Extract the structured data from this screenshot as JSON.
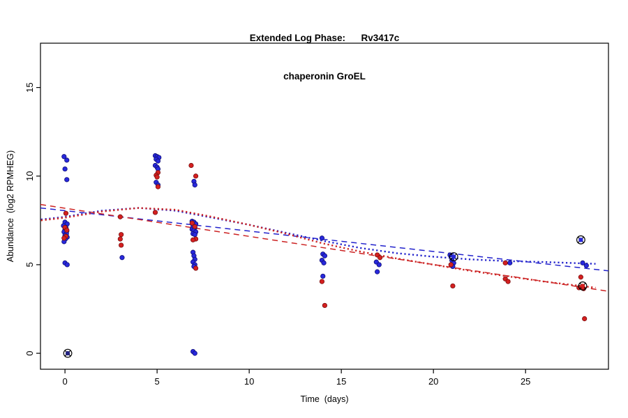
{
  "chart_data": {
    "type": "scatter",
    "title_line1": "Extended Log Phase:      Rv3417c",
    "title_line2": "chaperonin GroEL",
    "xlabel": "Time  (days)",
    "ylabel": "Abundance  (log2 RPMHEG)",
    "xticks": [
      0,
      5,
      10,
      15,
      20,
      25
    ],
    "yticks": [
      0,
      5,
      10,
      15
    ],
    "xlim": [
      -1.33,
      29.5
    ],
    "ylim": [
      -0.9,
      17.5
    ],
    "grid": false,
    "legend": "none",
    "colors": {
      "blue": "#2828DC",
      "red": "#D42020",
      "outlier_ring": "#000000"
    },
    "series": [
      {
        "name": "blue-points",
        "color": "#2828DC",
        "stroke": "#101078",
        "points": [
          [
            -0.05,
            11.1
          ],
          [
            0.1,
            10.9
          ],
          [
            0.0,
            10.4
          ],
          [
            0.1,
            9.8
          ],
          [
            0.0,
            7.4
          ],
          [
            0.12,
            7.3
          ],
          [
            -0.08,
            7.2
          ],
          [
            0.05,
            7.1
          ],
          [
            0.0,
            7.0
          ],
          [
            0.1,
            6.9
          ],
          [
            -0.05,
            6.85
          ],
          [
            0.08,
            6.75
          ],
          [
            0.0,
            6.65
          ],
          [
            0.12,
            6.55
          ],
          [
            0.02,
            6.45
          ],
          [
            -0.05,
            6.3
          ],
          [
            0.0,
            5.1
          ],
          [
            0.12,
            5.0
          ],
          [
            3.1,
            5.4
          ],
          [
            4.9,
            11.15
          ],
          [
            5.0,
            11.1
          ],
          [
            5.1,
            11.05
          ],
          [
            4.95,
            10.95
          ],
          [
            5.05,
            10.85
          ],
          [
            4.9,
            10.6
          ],
          [
            5.0,
            10.5
          ],
          [
            5.05,
            10.4
          ],
          [
            4.95,
            9.65
          ],
          [
            5.05,
            9.5
          ],
          [
            7.0,
            9.7
          ],
          [
            7.05,
            9.5
          ],
          [
            6.9,
            7.45
          ],
          [
            7.0,
            7.4
          ],
          [
            7.1,
            7.3
          ],
          [
            6.95,
            7.2
          ],
          [
            7.05,
            7.1
          ],
          [
            6.9,
            7.0
          ],
          [
            7.0,
            6.95
          ],
          [
            7.1,
            6.85
          ],
          [
            6.95,
            6.75
          ],
          [
            7.05,
            6.7
          ],
          [
            6.95,
            5.7
          ],
          [
            7.0,
            5.5
          ],
          [
            7.05,
            5.3
          ],
          [
            6.95,
            5.15
          ],
          [
            7.05,
            5.0
          ],
          [
            7.0,
            4.9
          ],
          [
            6.95,
            0.1
          ],
          [
            7.05,
            0.0
          ],
          [
            13.95,
            6.5
          ],
          [
            14.0,
            5.6
          ],
          [
            14.1,
            5.5
          ],
          [
            13.95,
            5.25
          ],
          [
            14.05,
            5.1
          ],
          [
            14.0,
            4.35
          ],
          [
            16.9,
            5.15
          ],
          [
            17.05,
            5.0
          ],
          [
            16.95,
            4.6
          ],
          [
            20.9,
            5.55
          ],
          [
            21.0,
            5.25
          ],
          [
            21.1,
            5.1
          ],
          [
            21.05,
            4.9
          ],
          [
            24.15,
            5.1
          ],
          [
            28.1,
            5.1
          ],
          [
            28.3,
            4.95
          ]
        ]
      },
      {
        "name": "red-points",
        "color": "#D42020",
        "stroke": "#7A0F0F",
        "points": [
          [
            0.05,
            7.9
          ],
          [
            0.0,
            7.1
          ],
          [
            0.1,
            6.95
          ],
          [
            0.05,
            6.6
          ],
          [
            -0.05,
            6.5
          ],
          [
            3.0,
            7.7
          ],
          [
            3.05,
            6.7
          ],
          [
            3.0,
            6.45
          ],
          [
            3.05,
            6.1
          ],
          [
            5.05,
            10.2
          ],
          [
            4.95,
            10.05
          ],
          [
            5.0,
            9.95
          ],
          [
            5.05,
            9.4
          ],
          [
            4.9,
            7.95
          ],
          [
            6.85,
            10.6
          ],
          [
            7.1,
            10.0
          ],
          [
            6.9,
            7.35
          ],
          [
            7.05,
            7.15
          ],
          [
            7.1,
            6.45
          ],
          [
            6.95,
            6.4
          ],
          [
            7.1,
            4.8
          ],
          [
            13.95,
            4.05
          ],
          [
            14.1,
            2.7
          ],
          [
            16.95,
            5.55
          ],
          [
            17.1,
            5.4
          ],
          [
            20.95,
            5.0
          ],
          [
            21.05,
            3.8
          ],
          [
            23.9,
            5.1
          ],
          [
            23.9,
            4.2
          ],
          [
            24.05,
            4.05
          ],
          [
            28.0,
            4.3
          ],
          [
            27.9,
            3.7
          ],
          [
            28.15,
            3.65
          ],
          [
            28.2,
            1.95
          ]
        ]
      }
    ],
    "outliers": [
      {
        "x": 0.15,
        "y": 0.0,
        "color": "#202080"
      },
      {
        "x": 21.1,
        "y": 5.45,
        "color": "#2828DC"
      },
      {
        "x": 28.0,
        "y": 6.4,
        "color": "#2828DC"
      },
      {
        "x": 28.1,
        "y": 3.8,
        "color": "#D42020"
      }
    ],
    "lines": [
      {
        "name": "blue-linear-fit",
        "color": "#2222CC",
        "style": "dashed",
        "points": [
          [
            -1.33,
            8.2
          ],
          [
            29.5,
            4.65
          ]
        ]
      },
      {
        "name": "red-linear-fit",
        "color": "#CC2222",
        "style": "dashed",
        "points": [
          [
            -1.33,
            8.4
          ],
          [
            29.5,
            3.5
          ]
        ]
      },
      {
        "name": "blue-loess-fit",
        "color": "#2222CC",
        "style": "dotted",
        "points": [
          [
            -1.3,
            7.55
          ],
          [
            0,
            7.7
          ],
          [
            2,
            8.05
          ],
          [
            4,
            8.2
          ],
          [
            6,
            8.05
          ],
          [
            8,
            7.65
          ],
          [
            10,
            7.25
          ],
          [
            12,
            6.8
          ],
          [
            14,
            6.35
          ],
          [
            16,
            5.95
          ],
          [
            18,
            5.65
          ],
          [
            20,
            5.45
          ],
          [
            22,
            5.3
          ],
          [
            24,
            5.2
          ],
          [
            26,
            5.15
          ],
          [
            28.8,
            5.05
          ]
        ]
      },
      {
        "name": "red-loess-fit",
        "color": "#CC2222",
        "style": "dotted",
        "points": [
          [
            -1.3,
            7.5
          ],
          [
            0,
            7.65
          ],
          [
            2,
            8.0
          ],
          [
            4,
            8.2
          ],
          [
            6,
            8.1
          ],
          [
            8,
            7.7
          ],
          [
            10,
            7.25
          ],
          [
            12,
            6.75
          ],
          [
            14,
            6.2
          ],
          [
            16,
            5.75
          ],
          [
            18,
            5.35
          ],
          [
            20,
            5.0
          ],
          [
            22,
            4.65
          ],
          [
            24,
            4.35
          ],
          [
            26,
            4.05
          ],
          [
            28.8,
            3.7
          ]
        ]
      }
    ]
  }
}
